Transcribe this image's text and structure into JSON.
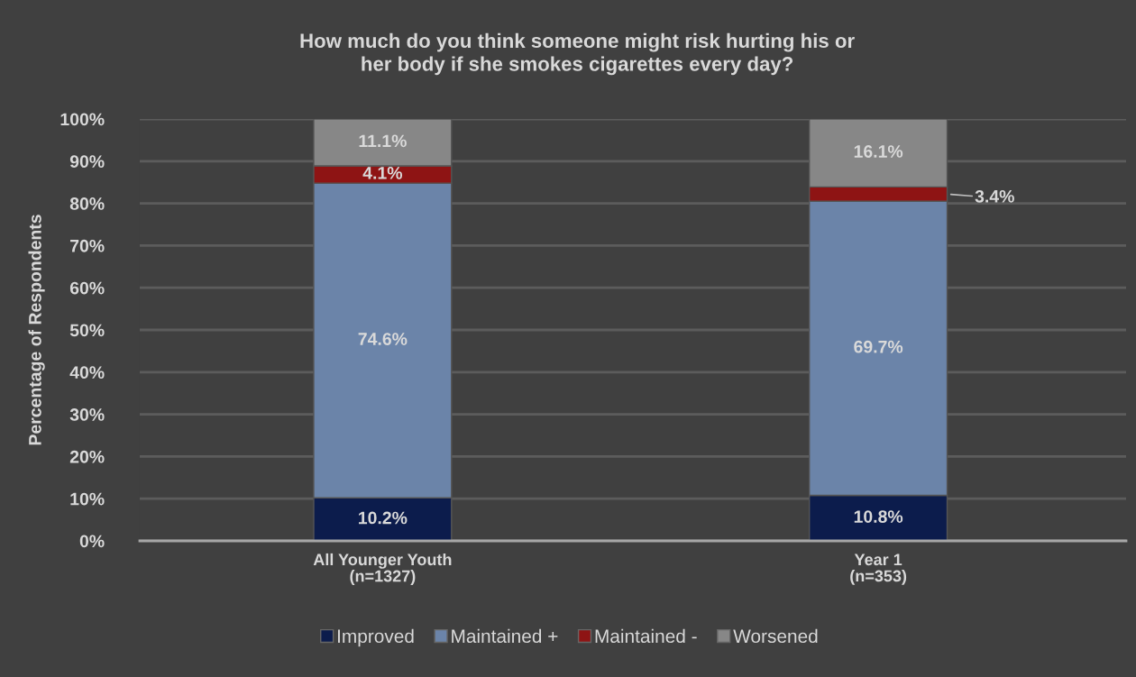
{
  "chart_data": {
    "type": "bar",
    "stacked": true,
    "title": "How much do you think someone might risk hurting his or\nher body if she smokes cigarettes every day?",
    "ylabel": "Percentage of Respondents",
    "categories": [
      "All Younger Youth\n(n=1327)",
      "Year 1\n(n=353)"
    ],
    "series": [
      {
        "name": "Improved",
        "color": "#0c1c4c",
        "values": [
          10.2,
          10.8
        ],
        "value_labels": [
          "10.2%",
          "10.8%"
        ]
      },
      {
        "name": "Maintained +",
        "color": "#6b84a9",
        "values": [
          74.6,
          69.7
        ],
        "value_labels": [
          "74.6%",
          "69.7%"
        ]
      },
      {
        "name": "Maintained -",
        "color": "#8e1414",
        "values": [
          4.1,
          3.4
        ],
        "value_labels": [
          "4.1%",
          "3.4%"
        ]
      },
      {
        "name": "Worsened",
        "color": "#878787",
        "values": [
          11.1,
          16.1
        ],
        "value_labels": [
          "11.1%",
          "16.1%"
        ]
      }
    ],
    "ylim": [
      0,
      100
    ],
    "yticks": [
      {
        "value": 0,
        "label": "0%"
      },
      {
        "value": 10,
        "label": "10%"
      },
      {
        "value": 20,
        "label": "20%"
      },
      {
        "value": 30,
        "label": "30%"
      },
      {
        "value": 40,
        "label": "40%"
      },
      {
        "value": 50,
        "label": "50%"
      },
      {
        "value": 60,
        "label": "60%"
      },
      {
        "value": 70,
        "label": "70%"
      },
      {
        "value": 80,
        "label": "80%"
      },
      {
        "value": 90,
        "label": "90%"
      },
      {
        "value": 100,
        "label": "100%"
      }
    ],
    "grid": "y",
    "legend": "bottom"
  }
}
